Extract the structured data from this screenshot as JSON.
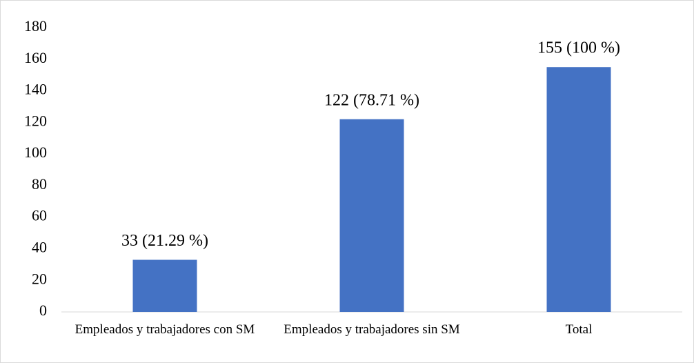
{
  "chart_data": {
    "type": "bar",
    "categories": [
      "Empleados y trabajadores con SM",
      "Empleados y trabajadores sin SM",
      "Total"
    ],
    "values": [
      33,
      122,
      155
    ],
    "value_labels": [
      "33 (21.29 %)",
      "122 (78.71 %)",
      "155 (100 %)"
    ],
    "color": "#4472c4",
    "ylim": [
      0,
      180
    ],
    "yticks": [
      0,
      20,
      40,
      60,
      80,
      100,
      120,
      140,
      160,
      180
    ],
    "grid": false
  }
}
